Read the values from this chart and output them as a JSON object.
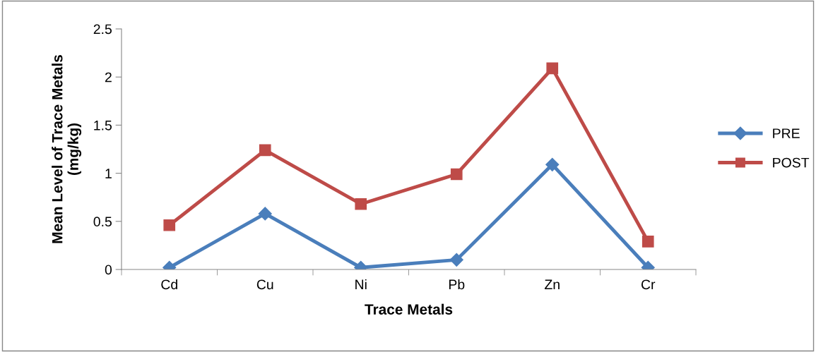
{
  "chart_data": {
    "type": "line",
    "xlabel": "Trace Metals",
    "ylabel": "Mean Level of Trace Metals\n(mg/kg)",
    "categories": [
      "Cd",
      "Cu",
      "Ni",
      "Pb",
      "Zn",
      "Cr"
    ],
    "series": [
      {
        "name": "PRE",
        "color": "#4a7ebb",
        "marker": "diamond",
        "values": [
          0.02,
          0.58,
          0.02,
          0.1,
          1.09,
          0.02
        ]
      },
      {
        "name": "POST",
        "color": "#be4b48",
        "marker": "square",
        "values": [
          0.46,
          1.24,
          0.68,
          0.99,
          2.09,
          0.29
        ]
      }
    ],
    "ylim": [
      0,
      2.5
    ],
    "yticks": [
      0,
      0.5,
      1,
      1.5,
      2,
      2.5
    ],
    "grid": false,
    "legend": "right",
    "line_style": "solid"
  }
}
